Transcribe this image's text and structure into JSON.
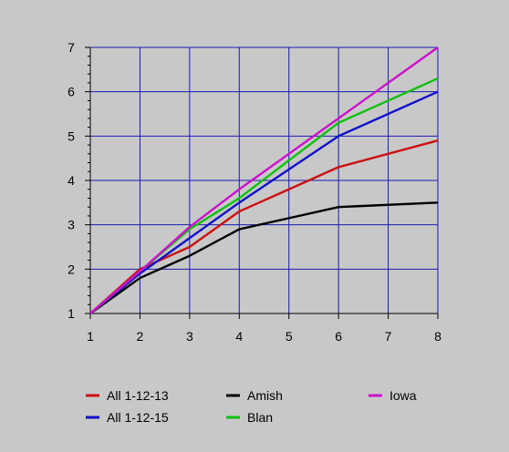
{
  "chart_data": {
    "type": "line",
    "title": "",
    "xlabel": "",
    "ylabel": "",
    "xlim": [
      1,
      8
    ],
    "ylim": [
      1,
      7
    ],
    "x_ticks": [
      1,
      2,
      3,
      4,
      5,
      6,
      7,
      8
    ],
    "y_ticks": [
      1,
      2,
      3,
      4,
      5,
      6,
      7
    ],
    "grid": true,
    "grid_color": "#1a1ab4",
    "background_color": "#c8c8c8",
    "legend_position": "bottom",
    "x": [
      1,
      2,
      3,
      4,
      5,
      6,
      8
    ],
    "series": [
      {
        "name": "All 1-12-13",
        "color": "#cc1010",
        "values": [
          1,
          2.0,
          2.5,
          3.3,
          3.8,
          4.3,
          4.9
        ]
      },
      {
        "name": "All 1-12-15",
        "color": "#1010cc",
        "values": [
          1,
          1.9,
          2.7,
          3.5,
          4.25,
          5.0,
          6.0
        ]
      },
      {
        "name": "Amish",
        "color": "#000000",
        "values": [
          1,
          1.8,
          2.3,
          2.9,
          3.15,
          3.4,
          3.5
        ]
      },
      {
        "name": "Blan",
        "color": "#10c010",
        "values": [
          1,
          1.95,
          2.9,
          3.6,
          4.45,
          5.3,
          6.3
        ]
      },
      {
        "name": "Iowa",
        "color": "#cc10cc",
        "values": [
          1,
          1.95,
          2.95,
          3.8,
          4.6,
          5.4,
          7.0
        ]
      }
    ]
  }
}
